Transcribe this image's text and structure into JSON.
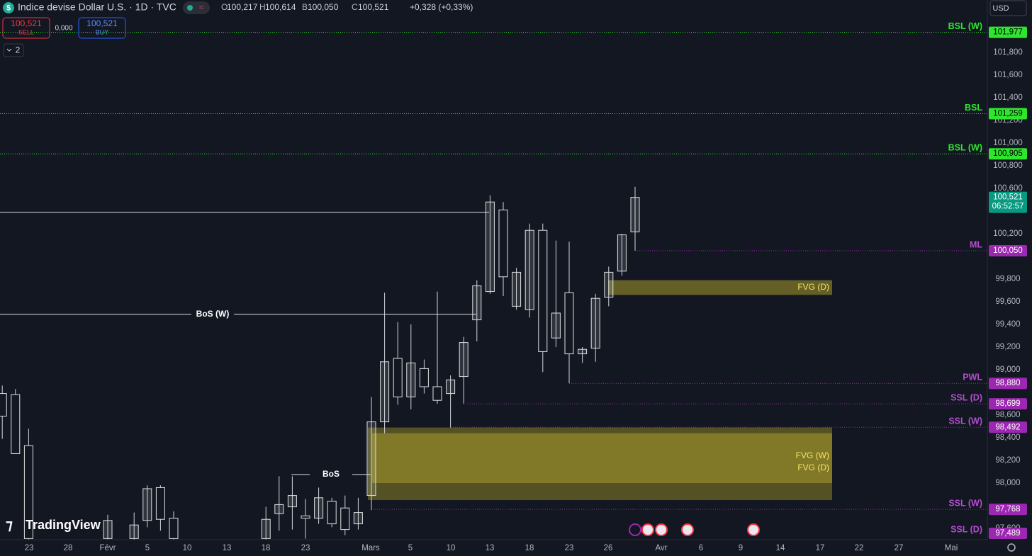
{
  "header": {
    "symbol": "Indice devise Dollar U.S. · 1D · TVC",
    "ohlc": [
      {
        "key": "O",
        "value": "100,217"
      },
      {
        "key": "H",
        "value": "100,614"
      },
      {
        "key": "B",
        "value": "100,050"
      },
      {
        "key": "C",
        "value": "100,521"
      }
    ],
    "change": "+0,328 (+0,33%)"
  },
  "trade": {
    "sell_price": "100,521",
    "sell": "SELL",
    "spread": "0,000",
    "buy_price": "100,521",
    "buy": "BUY"
  },
  "indicators_count": "2",
  "currency": "USD",
  "logo": "TradingView",
  "chart_data": {
    "type": "candlestick",
    "open": [
      98.79,
      98.78,
      98.33,
      null,
      null,
      null,
      null,
      null,
      97.51,
      null,
      97.51,
      97.67,
      97.96,
      97.69,
      null,
      null,
      null,
      null,
      null,
      null,
      97.51,
      97.73,
      97.79,
      97.71,
      97.69,
      97.84,
      97.78,
      97.64,
      97.89,
      98.54,
      99.1,
      98.76,
      99.01,
      98.85,
      98.79,
      98.94,
      99.44,
      99.69,
      100.41,
      99.56,
      99.53,
      100.23,
      99.28,
      99.68,
      99.14,
      99.19,
      99.64,
      99.87,
      100.217
    ],
    "high": [
      98.86,
      98.83,
      98.48,
      null,
      null,
      null,
      null,
      null,
      97.72,
      null,
      97.74,
      97.98,
      97.98,
      97.75,
      null,
      null,
      null,
      null,
      null,
      null,
      97.79,
      98.06,
      98.06,
      97.86,
      97.96,
      97.87,
      97.89,
      97.87,
      98.76,
      99.68,
      99.42,
      99.4,
      99.09,
      99.69,
      98.95,
      99.29,
      99.79,
      100.54,
      100.48,
      99.9,
      100.29,
      100.29,
      100.14,
      100.13,
      99.2,
      99.67,
      99.91,
      100.2,
      100.614
    ],
    "low": [
      98.39,
      98.26,
      97.5,
      null,
      null,
      null,
      null,
      null,
      97.5,
      null,
      97.5,
      97.61,
      97.58,
      97.5,
      null,
      null,
      null,
      null,
      null,
      null,
      97.5,
      97.58,
      97.59,
      97.51,
      97.64,
      97.61,
      97.54,
      97.59,
      97.76,
      98.44,
      98.69,
      98.65,
      98.79,
      98.7,
      98.49,
      98.7,
      99.25,
      99.67,
      99.65,
      99.53,
      99.46,
      98.98,
      99.2,
      98.88,
      99.06,
      99.07,
      99.56,
      99.83,
      100.05
    ],
    "close": [
      98.59,
      98.26,
      97.51,
      null,
      null,
      null,
      null,
      null,
      97.67,
      null,
      97.63,
      97.95,
      97.68,
      97.51,
      null,
      null,
      null,
      null,
      null,
      null,
      97.68,
      97.81,
      97.89,
      97.69,
      97.87,
      97.64,
      97.59,
      97.74,
      98.54,
      99.07,
      98.76,
      99.06,
      98.85,
      98.73,
      98.91,
      99.24,
      99.74,
      100.48,
      99.82,
      99.86,
      100.23,
      99.16,
      99.5,
      99.14,
      99.18,
      99.63,
      99.86,
      100.19,
      100.521
    ],
    "up_color": "#ffffff",
    "down_color": "#131722",
    "ylim": [
      97.5,
      102.25
    ],
    "yticks": [
      {
        "value": 101.8,
        "label": "101,800"
      },
      {
        "value": 101.6,
        "label": "101,600"
      },
      {
        "value": 101.4,
        "label": "101,400"
      },
      {
        "value": 101.2,
        "label": "101,200"
      },
      {
        "value": 101.0,
        "label": "101,000"
      },
      {
        "value": 100.8,
        "label": "100,800"
      },
      {
        "value": 100.6,
        "label": "100,600"
      },
      {
        "value": 100.2,
        "label": "100,200"
      },
      {
        "value": 99.8,
        "label": "99,800"
      },
      {
        "value": 99.6,
        "label": "99,600"
      },
      {
        "value": 99.4,
        "label": "99,400"
      },
      {
        "value": 99.2,
        "label": "99,200"
      },
      {
        "value": 99.0,
        "label": "99,000"
      },
      {
        "value": 98.6,
        "label": "98,600"
      },
      {
        "value": 98.4,
        "label": "98,400"
      },
      {
        "value": 98.2,
        "label": "98,200"
      },
      {
        "value": 98.0,
        "label": "98,000"
      },
      {
        "value": 97.6,
        "label": "97,600"
      }
    ],
    "x_labels": [
      "23",
      "28",
      "Févr",
      "5",
      "10",
      "13",
      "18",
      "23",
      "Mars",
      "5",
      "10",
      "13",
      "18",
      "23",
      "26",
      "Avr",
      "6",
      "9",
      "14",
      "17",
      "22",
      "27",
      "Mai"
    ],
    "levels": [
      {
        "name": "BSL (W)",
        "value": 101.977,
        "label": "101,977",
        "color": "#2ee62e"
      },
      {
        "name": "BSL",
        "value": 101.259,
        "label": "101,259",
        "color": "#2ee62e"
      },
      {
        "name": "BSL (W)",
        "value": 100.905,
        "label": "100,905",
        "color": "#2ee62e"
      },
      {
        "name": "ML",
        "value": 100.05,
        "label": "100,050",
        "color": "#9c27b0"
      },
      {
        "name": "PWL",
        "value": 98.88,
        "label": "98,880",
        "color": "#9c27b0"
      },
      {
        "name": "SSL (D)",
        "value": 98.699,
        "label": "98,699",
        "color": "#9c27b0"
      },
      {
        "name": "SSL (W)",
        "value": 98.492,
        "label": "98,492",
        "color": "#9c27b0"
      },
      {
        "name": "SSL (W)",
        "value": 97.768,
        "label": "97,768",
        "color": "#9c27b0"
      },
      {
        "name": "SSL (D)",
        "value": 97.489,
        "label": "97,489",
        "color": "#9c27b0"
      }
    ],
    "zones": [
      {
        "label": "FVG (D)",
        "top": 99.79,
        "bottom": 99.66
      },
      {
        "label": "FVG (W)",
        "top": 98.49,
        "bottom": 97.85
      },
      {
        "label": "FVG (D)",
        "top": 98.44,
        "bottom": 98.0
      }
    ],
    "zone_color": "#a59a2a",
    "structure": [
      {
        "name": "BoS (W)",
        "value": 99.49
      },
      {
        "name": "BoS",
        "value": 98.075
      }
    ],
    "h_lines": [
      100.39
    ],
    "last_price": {
      "value": 100.521,
      "label": "100,521",
      "countdown": "06:52:57",
      "color": "#089981"
    }
  }
}
